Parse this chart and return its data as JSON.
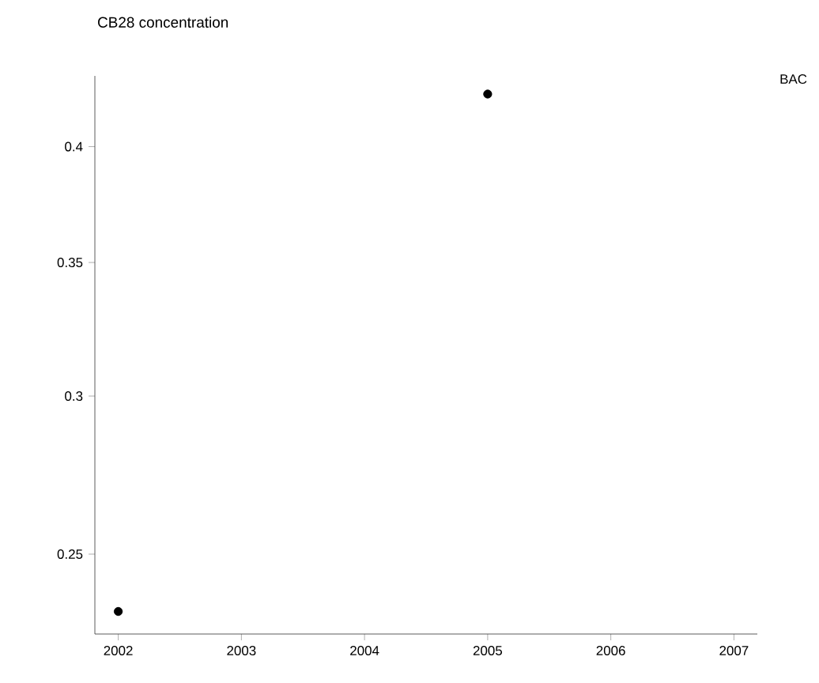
{
  "chart_data": {
    "type": "scatter",
    "title": "CB28 concentration",
    "x": [
      2002,
      2005
    ],
    "values": [
      0.234,
      0.425
    ],
    "color": "#000000",
    "marker": "circle",
    "log": "y",
    "xlim": [
      2001.81,
      2007.19
    ],
    "ylim": [
      0.228,
      0.434
    ],
    "xticks": [
      2002,
      2003,
      2004,
      2005,
      2006,
      2007
    ],
    "yticks": [
      0.25,
      0.3,
      0.35,
      0.4
    ],
    "annotations": [
      "BAC"
    ]
  }
}
